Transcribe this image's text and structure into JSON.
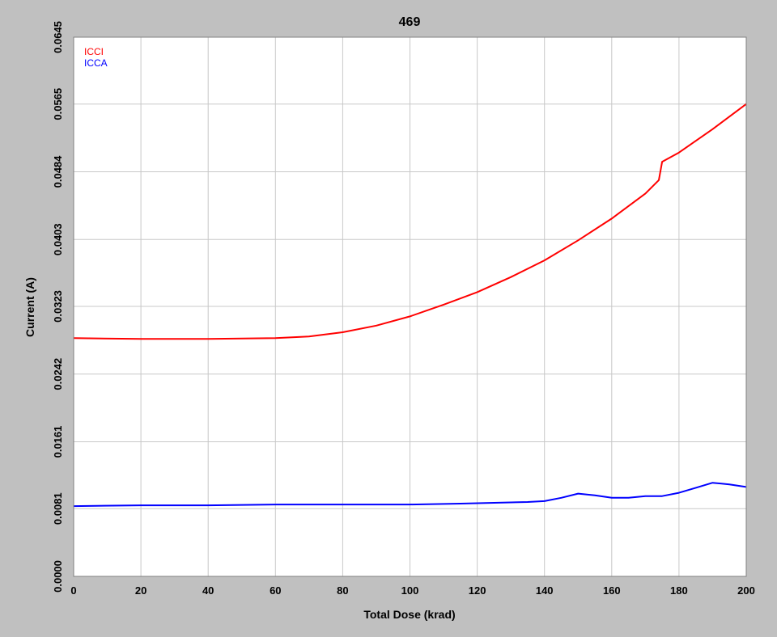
{
  "chart_data": {
    "type": "line",
    "title": "469",
    "xlabel": "Total Dose (krad)",
    "ylabel": "Current (A)",
    "xlim": [
      0,
      200
    ],
    "ylim": [
      0.0,
      0.0645
    ],
    "x_ticks": [
      "0",
      "20",
      "40",
      "60",
      "80",
      "100",
      "120",
      "140",
      "160",
      "180",
      "200"
    ],
    "y_ticks": [
      "0.0000",
      "0.0081",
      "0.0161",
      "0.0242",
      "0.0323",
      "0.0403",
      "0.0484",
      "0.0565",
      "0.0645"
    ],
    "grid": true,
    "legend_position": "top-left",
    "series": [
      {
        "name": "ICCI",
        "color": "#ff0000",
        "x": [
          0,
          20,
          40,
          60,
          70,
          80,
          90,
          100,
          110,
          120,
          130,
          140,
          150,
          160,
          170,
          174,
          175,
          180,
          190,
          200
        ],
        "y": [
          0.0285,
          0.0284,
          0.0284,
          0.0285,
          0.0287,
          0.0292,
          0.03,
          0.0311,
          0.0325,
          0.034,
          0.0358,
          0.0378,
          0.0402,
          0.0428,
          0.0458,
          0.0474,
          0.0496,
          0.0507,
          0.0535,
          0.0565
        ]
      },
      {
        "name": "ICCA",
        "color": "#0000ff",
        "x": [
          0,
          20,
          40,
          60,
          80,
          100,
          115,
          125,
          135,
          140,
          145,
          150,
          155,
          160,
          165,
          170,
          175,
          180,
          185,
          190,
          195,
          200
        ],
        "y": [
          0.0084,
          0.0085,
          0.0085,
          0.0086,
          0.0086,
          0.0086,
          0.0087,
          0.0088,
          0.0089,
          0.009,
          0.0094,
          0.0099,
          0.0097,
          0.0094,
          0.0094,
          0.0096,
          0.0096,
          0.01,
          0.0106,
          0.0112,
          0.011,
          0.0107
        ]
      }
    ]
  }
}
